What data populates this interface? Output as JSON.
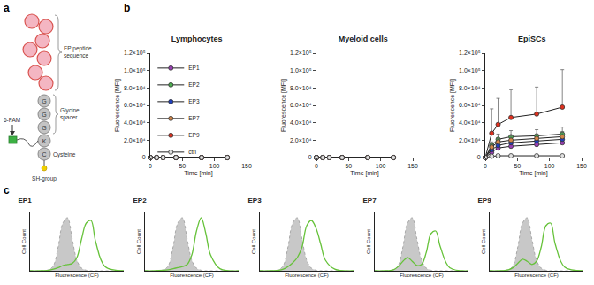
{
  "panel_labels": [
    "a",
    "b",
    "c"
  ],
  "diagram": {
    "peptide_label": [
      "EP peptide",
      "sequence"
    ],
    "spacer_label": [
      "Glycine",
      "spacer"
    ],
    "residues": [
      "G",
      "G",
      "G",
      "K",
      "C"
    ],
    "dye": "6-FAM",
    "cysteine_label": "Cysteine",
    "thiol_label": "SH-group"
  },
  "chart_data": [
    {
      "type": "line",
      "title": "Lymphocytes",
      "x_label": "Time [min]",
      "y_label": "Fluorescence [MFI]",
      "x": [
        0,
        10,
        20,
        40,
        80,
        120
      ],
      "xlim": [
        0,
        150
      ],
      "xticks": [
        0,
        50,
        100,
        150
      ],
      "ylim": [
        0,
        120000
      ],
      "yticks": [
        0,
        {
          "value": 20000,
          "label": "2.0×10⁴"
        },
        {
          "value": 40000,
          "label": "4.0×10⁴"
        },
        {
          "value": 60000,
          "label": "6.0×10⁴"
        },
        {
          "value": 80000,
          "label": "8.0×10⁴"
        },
        {
          "value": 100000,
          "label": "1.0×10⁵"
        },
        {
          "value": 120000,
          "label": "1.2×10⁵"
        }
      ],
      "legend": "upper left",
      "series": [
        {
          "name": "EP1",
          "color": "#9b3fb5",
          "marker": "circle",
          "values": [
            0,
            0,
            0,
            0,
            0,
            0
          ]
        },
        {
          "name": "EP2",
          "color": "#4caf50",
          "marker": "circle",
          "values": [
            0,
            0,
            0,
            0,
            0,
            0
          ]
        },
        {
          "name": "EP3",
          "color": "#1f3fbf",
          "marker": "circle",
          "values": [
            0,
            0,
            0,
            0,
            0,
            0
          ]
        },
        {
          "name": "EP7",
          "color": "#d4874a",
          "marker": "circle",
          "values": [
            0,
            0,
            0,
            0,
            0,
            0
          ]
        },
        {
          "name": "EP9",
          "color": "#e0301e",
          "marker": "circle",
          "values": [
            0,
            0,
            0,
            0,
            0,
            0
          ]
        },
        {
          "name": "ctrl",
          "color": "#e0e0e0",
          "marker": "circle",
          "values": [
            0,
            0,
            0,
            0,
            0,
            0
          ]
        }
      ]
    },
    {
      "type": "line",
      "title": "Myeloid cells",
      "x_label": "Time [min]",
      "y_label": "Fluorescence [MFI]",
      "x": [
        0,
        10,
        20,
        40,
        80,
        120
      ],
      "xlim": [
        0,
        150
      ],
      "xticks": [
        0,
        50,
        100,
        150
      ],
      "ylim": [
        0,
        120000
      ],
      "yticks": [
        0,
        {
          "value": 20000,
          "label": "2.0×10⁴"
        },
        {
          "value": 40000,
          "label": "4.0×10⁴"
        },
        {
          "value": 60000,
          "label": "6.0×10⁴"
        },
        {
          "value": 80000,
          "label": "8.0×10⁴"
        },
        {
          "value": 100000,
          "label": "1.0×10⁵"
        },
        {
          "value": 120000,
          "label": "1.2×10⁵"
        }
      ],
      "series": [
        {
          "name": "EP1",
          "color": "#9b3fb5",
          "marker": "circle",
          "values": [
            0,
            0,
            0,
            0,
            0,
            0
          ]
        },
        {
          "name": "EP2",
          "color": "#4caf50",
          "marker": "circle",
          "values": [
            0,
            0,
            0,
            0,
            0,
            0
          ]
        },
        {
          "name": "EP3",
          "color": "#1f3fbf",
          "marker": "circle",
          "values": [
            0,
            0,
            0,
            0,
            0,
            0
          ]
        },
        {
          "name": "EP7",
          "color": "#d4874a",
          "marker": "circle",
          "values": [
            0,
            0,
            0,
            0,
            0,
            0
          ]
        },
        {
          "name": "EP9",
          "color": "#e0301e",
          "marker": "circle",
          "values": [
            0,
            0,
            0,
            0,
            0,
            0
          ]
        },
        {
          "name": "ctrl",
          "color": "#e0e0e0",
          "marker": "circle",
          "values": [
            0,
            0,
            0,
            0,
            0,
            0
          ]
        }
      ]
    },
    {
      "type": "line",
      "title": "EpiSCs",
      "x_label": "Time [min]",
      "y_label": "Fluorescence [MFI]",
      "x": [
        0,
        10,
        20,
        40,
        80,
        120
      ],
      "xlim": [
        0,
        150
      ],
      "xticks": [
        0,
        50,
        100,
        150
      ],
      "ylim": [
        0,
        120000
      ],
      "yticks": [
        0,
        {
          "value": 20000,
          "label": "2.0×10⁴"
        },
        {
          "value": 40000,
          "label": "4.0×10⁴"
        },
        {
          "value": 60000,
          "label": "6.0×10⁴"
        },
        {
          "value": 80000,
          "label": "8.0×10⁴"
        },
        {
          "value": 100000,
          "label": "1.0×10⁵"
        },
        {
          "value": 120000,
          "label": "1.2×10⁵"
        }
      ],
      "series": [
        {
          "name": "EP1",
          "color": "#9b3fb5",
          "marker": "circle",
          "values": [
            0,
            6000,
            11000,
            13000,
            15000,
            17000
          ],
          "error": [
            0,
            1500,
            2000,
            2500,
            3000,
            3000
          ]
        },
        {
          "name": "EP2",
          "color": "#4caf50",
          "marker": "circle",
          "values": [
            0,
            14000,
            21000,
            24000,
            25000,
            27000
          ],
          "error": [
            0,
            4000,
            6000,
            7000,
            7000,
            8000
          ]
        },
        {
          "name": "EP3",
          "color": "#1f3fbf",
          "marker": "circle",
          "values": [
            0,
            9000,
            14000,
            17000,
            19000,
            21000
          ],
          "error": [
            0,
            2000,
            3000,
            3500,
            4000,
            4000
          ]
        },
        {
          "name": "EP7",
          "color": "#d4874a",
          "marker": "circle",
          "values": [
            0,
            12000,
            18000,
            20000,
            22000,
            24000
          ],
          "error": [
            0,
            3000,
            4000,
            5000,
            5000,
            6000
          ]
        },
        {
          "name": "EP9",
          "color": "#e0301e",
          "marker": "circle",
          "values": [
            0,
            28000,
            38000,
            46000,
            50000,
            58000
          ],
          "error": [
            0,
            28000,
            30000,
            32000,
            31000,
            43000
          ]
        },
        {
          "name": "ctrl",
          "color": "#e0e0e0",
          "marker": "circle",
          "values": [
            0,
            1500,
            2000,
            2000,
            2000,
            2000
          ]
        }
      ]
    },
    {
      "type": "area",
      "title": "EP1",
      "x_label": "Fluorescence (CF)",
      "y_label": "Cell Count",
      "tick_labels": false,
      "x": [
        0,
        0.1,
        0.2,
        0.25,
        0.3,
        0.35,
        0.4,
        0.45,
        0.5,
        0.55,
        0.6,
        0.65,
        0.7,
        0.8,
        1.0
      ],
      "xlim": [
        0,
        1
      ],
      "ylim": [
        0,
        110
      ],
      "series": [
        {
          "type": "area",
          "color": "#c8c8c8",
          "values": [
            0,
            0,
            2,
            10,
            45,
            90,
            100,
            60,
            20,
            5,
            1,
            0,
            0,
            0,
            0
          ]
        },
        {
          "type": "line",
          "color": "#66c23a",
          "values": [
            0,
            0,
            1,
            3,
            6,
            10,
            12,
            14,
            25,
            60,
            90,
            95,
            55,
            8,
            0
          ]
        }
      ]
    },
    {
      "type": "area",
      "title": "EP2",
      "x_label": "Fluorescence (CF)",
      "y_label": "Cell Count",
      "tick_labels": false,
      "x": [
        0,
        0.1,
        0.2,
        0.25,
        0.3,
        0.35,
        0.4,
        0.45,
        0.5,
        0.55,
        0.6,
        0.65,
        0.7,
        0.8,
        1.0
      ],
      "xlim": [
        0,
        1
      ],
      "ylim": [
        0,
        110
      ],
      "series": [
        {
          "type": "area",
          "color": "#c8c8c8",
          "values": [
            0,
            0,
            2,
            10,
            45,
            90,
            100,
            60,
            20,
            5,
            1,
            0,
            0,
            0,
            0
          ]
        },
        {
          "type": "line",
          "color": "#66c23a",
          "values": [
            0,
            0,
            1,
            2,
            4,
            6,
            8,
            12,
            30,
            75,
            100,
            70,
            30,
            4,
            0
          ]
        }
      ]
    },
    {
      "type": "area",
      "title": "EP3",
      "x_label": "Fluorescence (CF)",
      "y_label": "Cell Count",
      "tick_labels": false,
      "x": [
        0,
        0.1,
        0.2,
        0.25,
        0.3,
        0.35,
        0.4,
        0.45,
        0.5,
        0.55,
        0.6,
        0.65,
        0.7,
        0.8,
        1.0
      ],
      "xlim": [
        0,
        1
      ],
      "ylim": [
        0,
        110
      ],
      "series": [
        {
          "type": "area",
          "color": "#c8c8c8",
          "values": [
            0,
            0,
            2,
            10,
            45,
            90,
            100,
            60,
            20,
            5,
            1,
            0,
            0,
            0,
            0
          ]
        },
        {
          "type": "line",
          "color": "#66c23a",
          "values": [
            0,
            0,
            1,
            3,
            8,
            15,
            25,
            45,
            85,
            95,
            80,
            50,
            20,
            3,
            0
          ]
        }
      ]
    },
    {
      "type": "area",
      "title": "EP7",
      "x_label": "Fluorescence (CF)",
      "y_label": "Cell Count",
      "tick_labels": false,
      "x": [
        0,
        0.1,
        0.2,
        0.25,
        0.3,
        0.35,
        0.4,
        0.45,
        0.5,
        0.55,
        0.6,
        0.65,
        0.7,
        0.8,
        1.0
      ],
      "xlim": [
        0,
        1
      ],
      "ylim": [
        0,
        110
      ],
      "series": [
        {
          "type": "area",
          "color": "#c8c8c8",
          "values": [
            0,
            0,
            2,
            10,
            45,
            90,
            100,
            60,
            20,
            5,
            1,
            0,
            0,
            0,
            0
          ]
        },
        {
          "type": "line",
          "color": "#66c23a",
          "values": [
            0,
            0,
            2,
            8,
            18,
            25,
            18,
            10,
            12,
            35,
            70,
            75,
            45,
            6,
            0
          ]
        }
      ]
    },
    {
      "type": "area",
      "title": "EP9",
      "x_label": "Fluorescence (CF)",
      "y_label": "Cell Count",
      "tick_labels": false,
      "x": [
        0,
        0.1,
        0.2,
        0.25,
        0.3,
        0.35,
        0.4,
        0.45,
        0.5,
        0.55,
        0.6,
        0.65,
        0.7,
        0.8,
        1.0
      ],
      "xlim": [
        0,
        1
      ],
      "ylim": [
        0,
        110
      ],
      "series": [
        {
          "type": "area",
          "color": "#c8c8c8",
          "values": [
            0,
            0,
            2,
            10,
            45,
            90,
            100,
            60,
            20,
            5,
            1,
            0,
            0,
            0,
            0
          ]
        },
        {
          "type": "line",
          "color": "#66c23a",
          "values": [
            0,
            0,
            2,
            6,
            14,
            22,
            18,
            12,
            18,
            45,
            85,
            90,
            50,
            7,
            0
          ]
        }
      ]
    }
  ]
}
